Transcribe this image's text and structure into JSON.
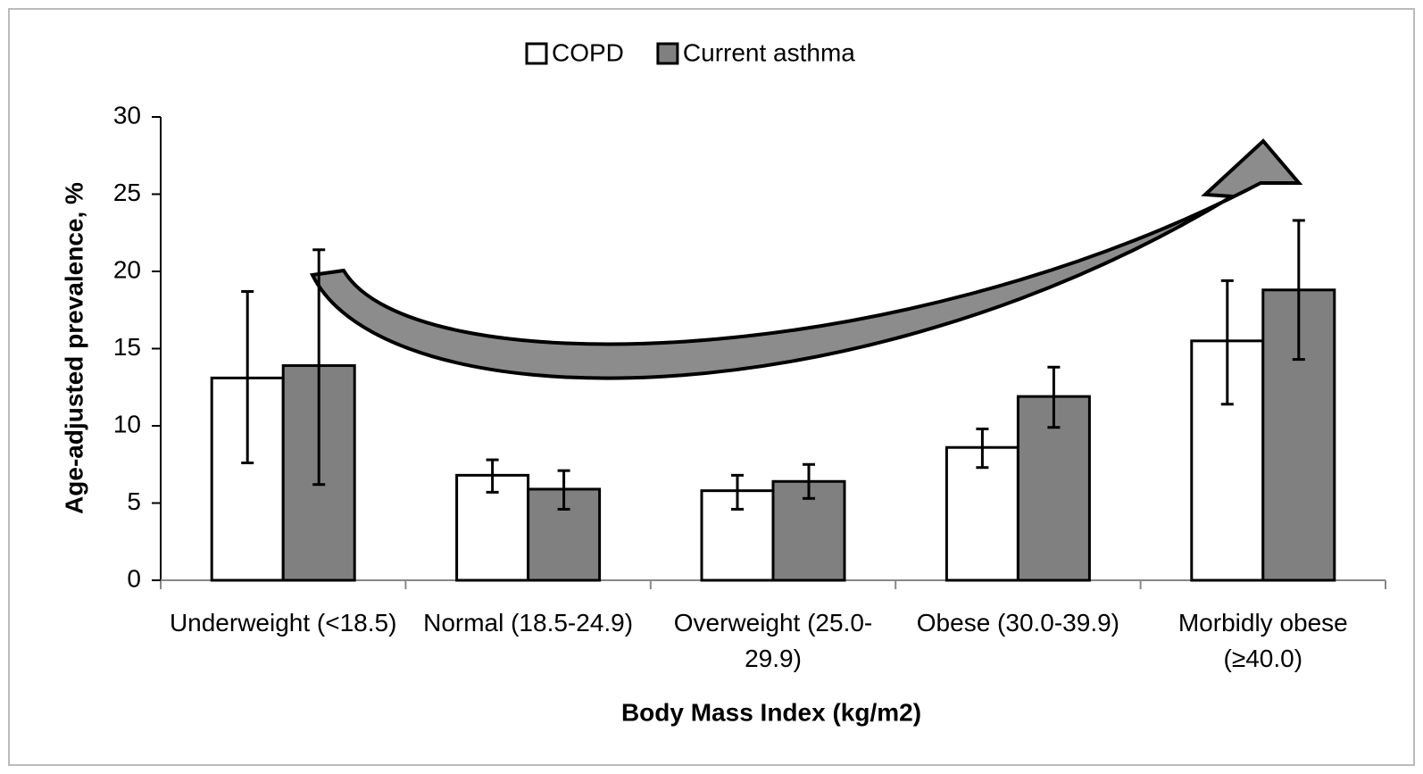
{
  "chart_data": {
    "type": "bar",
    "x_label": "Body Mass Index (kg/m2)",
    "y_label": "Age-adjusted prevalence, %",
    "categories": [
      "Underweight (<18.5)",
      "Normal (18.5-24.9)",
      "Overweight (25.0-29.9)",
      "Obese (30.0-39.9)",
      "Morbidly obese (≥40.0)"
    ],
    "series": [
      {
        "name": "COPD",
        "color": "#ffffff",
        "values": [
          13.1,
          6.8,
          5.8,
          8.6,
          15.5
        ],
        "lower": [
          7.6,
          5.7,
          4.6,
          7.3,
          11.4
        ],
        "upper": [
          18.7,
          7.8,
          6.8,
          9.8,
          19.4
        ]
      },
      {
        "name": "Current asthma",
        "color": "#808080",
        "values": [
          13.9,
          5.9,
          6.4,
          11.9,
          18.8
        ],
        "lower": [
          6.2,
          4.6,
          5.3,
          9.9,
          14.3
        ],
        "upper": [
          21.4,
          7.1,
          7.5,
          13.8,
          23.3
        ]
      }
    ],
    "ylim": [
      0,
      30
    ],
    "yticks": [
      0,
      5,
      10,
      15,
      20,
      25,
      30
    ],
    "legend": "top"
  }
}
